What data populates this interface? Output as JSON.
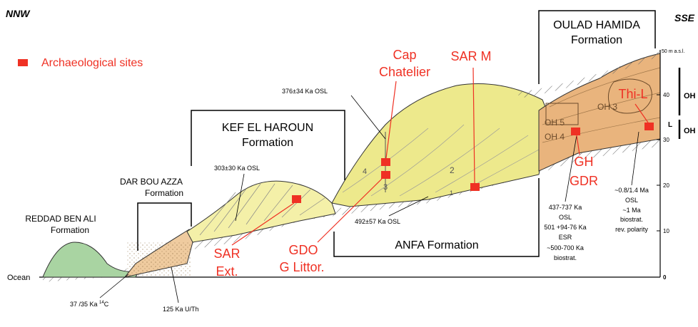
{
  "orientation": {
    "left": "NNW",
    "right": "SSE"
  },
  "legend": {
    "label": "Archaeological sites",
    "color": "#ef3124"
  },
  "formations": {
    "oulad_hamida": [
      "OULAD HAMIDA",
      "Formation"
    ],
    "kef_el_haroun": [
      "KEF EL HAROUN",
      "Formation"
    ],
    "dar_bou_azza": [
      "DAR BOU AZZA",
      "Formation"
    ],
    "reddad_ben_ali": [
      "REDDAD BEN ALI",
      "Formation"
    ],
    "anfa": "ANFA Formation"
  },
  "sites": {
    "cap_chatelier": [
      "Cap",
      "Chatelier"
    ],
    "sar_m": "SAR M",
    "thi_l": "Thi-L",
    "gh": "GH",
    "gdr": "GDR",
    "sar_ext": [
      "SAR",
      "Ext."
    ],
    "gdo": [
      "GDO",
      "G Littor."
    ]
  },
  "units": {
    "oh3": "OH 3",
    "oh5": "OH 5",
    "oh4": "OH 4",
    "n4": "4",
    "n3": "3",
    "n2": "2",
    "n1": "1"
  },
  "dates": {
    "osl_376": "376±34 Ka OSL",
    "osl_303": "303±30 Ka OSL",
    "osl_492": "492±57 Ka OSL",
    "c14": [
      "37 /35 Ka ",
      "14",
      "C"
    ],
    "uth": "125 Ka U/Th",
    "oh_lower": [
      "437-737 Ka",
      "OSL",
      "501 +94-76 Ka",
      "ESR",
      "~500-700 Ka",
      "biostrat."
    ],
    "oh_right": [
      "~0.8/1.4 Ma",
      "OSL",
      "~1 Ma",
      "biostrat.",
      "rev. polarity"
    ]
  },
  "scale": {
    "unit_label": "50 m a.s.l.",
    "ticks": [
      "40",
      "30",
      "20",
      "10",
      "0"
    ],
    "bar_labels": [
      "OH",
      "L",
      "OH"
    ]
  },
  "ocean_label": "Ocean",
  "colors": {
    "green": "#a9d4a2",
    "tan": "#efcb9f",
    "light_yellow": "#f4f0a8",
    "yellow": "#ede98c",
    "orange": "#e9b47d",
    "red": "#ef3124"
  }
}
